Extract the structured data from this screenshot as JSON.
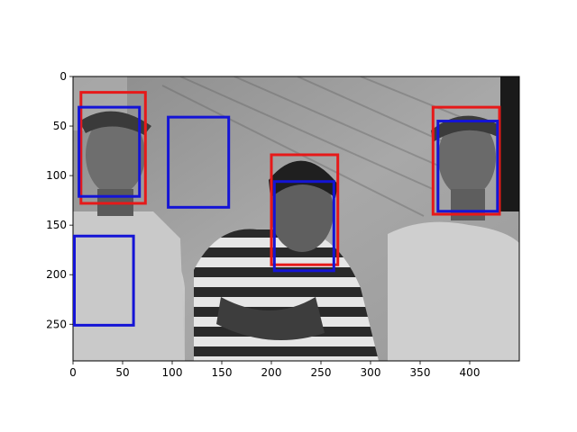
{
  "figure": {
    "image_description_tag": "grayscale-photo-three-men",
    "x_ticks": [
      "0",
      "50",
      "100",
      "150",
      "200",
      "250",
      "300",
      "350",
      "400"
    ],
    "y_ticks": [
      "0",
      "50",
      "100",
      "150",
      "200",
      "250"
    ],
    "x_tick_values": [
      0,
      50,
      100,
      150,
      200,
      250,
      300,
      350,
      400
    ],
    "y_tick_values": [
      0,
      50,
      100,
      150,
      200,
      250
    ],
    "x_range": [
      0,
      450
    ],
    "y_range": [
      0,
      287
    ],
    "box_colors": {
      "red": "#e61919",
      "blue": "#1414d6"
    },
    "boxes": [
      {
        "color": "red",
        "x0": 8,
        "y0": 16,
        "x1": 73,
        "y1": 128
      },
      {
        "color": "red",
        "x0": 200,
        "y0": 79,
        "x1": 267,
        "y1": 190
      },
      {
        "color": "red",
        "x0": 363,
        "y0": 31,
        "x1": 430,
        "y1": 139
      },
      {
        "color": "blue",
        "x0": 6,
        "y0": 31,
        "x1": 67,
        "y1": 121
      },
      {
        "color": "blue",
        "x0": 96,
        "y0": 41,
        "x1": 157,
        "y1": 132
      },
      {
        "color": "blue",
        "x0": 203,
        "y0": 106,
        "x1": 263,
        "y1": 196
      },
      {
        "color": "blue",
        "x0": 368,
        "y0": 45,
        "x1": 428,
        "y1": 136
      },
      {
        "color": "blue",
        "x0": 0,
        "y0": 161,
        "x1": 61,
        "y1": 251
      }
    ]
  }
}
